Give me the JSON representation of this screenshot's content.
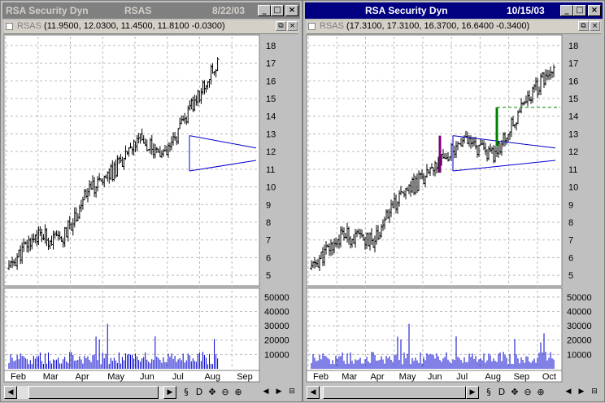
{
  "colors": {
    "active_title": "#000080",
    "inactive_title": "#808080",
    "price": "#000000",
    "volume": "#0000cc",
    "pattern": "#0000cc",
    "purple_bar": "#800080",
    "green_bar": "#008000"
  },
  "windows": [
    {
      "title": "RSA Security Dyn",
      "symbol": "RSAS",
      "date": "8/22/03",
      "active": false,
      "quote_symbol": "RSAS",
      "quote_values": "(11.9500, 12.0300, 11.4500, 11.8100 -0.0300)",
      "price_ticks": [
        "18",
        "17",
        "16",
        "15",
        "14",
        "13",
        "12",
        "11",
        "10",
        "9",
        "8",
        "7",
        "6",
        "5"
      ],
      "volume_ticks": [
        "50000",
        "40000",
        "30000",
        "20000",
        "10000"
      ],
      "month_labels": [
        "Feb",
        "Mar",
        "Apr",
        "May",
        "Jun",
        "Jul",
        "Aug",
        "Sep"
      ]
    },
    {
      "title": "RSA Security Dyn",
      "date": "10/15/03",
      "active": true,
      "quote_symbol": "RSAS",
      "quote_values": "(17.3100, 17.3100, 16.3700, 16.6400 -0.3400)",
      "price_ticks": [
        "18",
        "17",
        "16",
        "15",
        "14",
        "13",
        "12",
        "11",
        "10",
        "9",
        "8",
        "7",
        "6",
        "5"
      ],
      "volume_ticks": [
        "50000",
        "40000",
        "30000",
        "20000",
        "10000"
      ],
      "month_labels": [
        "Feb",
        "Mar",
        "Apr",
        "May",
        "Jun",
        "Jul",
        "Aug",
        "Sep",
        "Oct"
      ]
    }
  ],
  "toolbar_icons": [
    "link-icon",
    "data-icon",
    "move-icon",
    "zoom-out-icon",
    "zoom-in-icon"
  ],
  "chart_data": {
    "type": "ohlc",
    "title": "RSA Security Dyn (RSAS)",
    "y_range": [
      4.5,
      18.5
    ],
    "volume_range": [
      0,
      55000
    ],
    "window1_last_bar": {
      "open": 11.95,
      "high": 12.03,
      "low": 11.45,
      "close": 11.81,
      "change": -0.03,
      "date": "8/22/03"
    },
    "window2_last_bar": {
      "open": 17.31,
      "high": 17.31,
      "low": 16.37,
      "close": 16.64,
      "change": -0.34,
      "date": "10/15/03"
    },
    "close_path": [
      {
        "date": "Feb",
        "close": 5.4
      },
      {
        "date": "Mar",
        "close": 7.3
      },
      {
        "date": "Apr",
        "close": 6.9
      },
      {
        "date": "May",
        "close": 9.6
      },
      {
        "date": "Jun",
        "close": 10.9
      },
      {
        "date": "Jul",
        "close": 12.6
      },
      {
        "date": "Aug",
        "close": 11.7
      },
      {
        "date": "Sep",
        "close": 14.5
      },
      {
        "date": "Oct",
        "close": 17.0
      }
    ],
    "triangle_pattern": {
      "upper_from": 12.9,
      "upper_to": 12.2,
      "lower_from": 10.9,
      "lower_to": 11.5
    }
  }
}
